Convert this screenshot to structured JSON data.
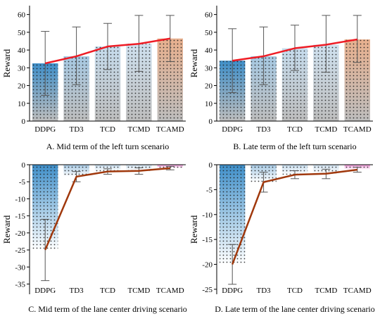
{
  "chart_data": [
    {
      "type": "bar",
      "caption": "A. Mid term of the left turn scenario",
      "categories": [
        "DDPG",
        "TD3",
        "TCD",
        "TCMD",
        "TCAMD"
      ],
      "values": [
        32.5,
        36.5,
        42,
        43.5,
        46.5
      ],
      "error_low": [
        14.5,
        20.5,
        29,
        28,
        33.5
      ],
      "error_high": [
        50.5,
        53,
        55,
        59.5,
        59.5
      ],
      "ylabel": "Reward",
      "ylim": [
        0,
        65
      ],
      "yticks": [
        0,
        10,
        20,
        30,
        40,
        50,
        60
      ],
      "bar_colors": [
        "#3f8fc9",
        "#a7c9e3",
        "#c6dced",
        "#cfe1ef",
        "#e8b08e"
      ],
      "line_color": "#ee1c25",
      "grid": false
    },
    {
      "type": "bar",
      "caption": "B. Late term of the left turn scenario",
      "categories": [
        "DDPG",
        "TD3",
        "TCD",
        "TCMD",
        "TCAMD"
      ],
      "values": [
        34,
        36.5,
        41,
        43,
        46
      ],
      "error_low": [
        16,
        20.5,
        28.5,
        27.5,
        33
      ],
      "error_high": [
        52,
        53,
        54,
        59.5,
        59.5
      ],
      "ylabel": "Reward",
      "ylim": [
        0,
        65
      ],
      "yticks": [
        0,
        10,
        20,
        30,
        40,
        50,
        60
      ],
      "bar_colors": [
        "#3f8fc9",
        "#a7c9e3",
        "#c6dced",
        "#cfe1ef",
        "#e8b08e"
      ],
      "line_color": "#ee1c25",
      "grid": false
    },
    {
      "type": "bar",
      "caption": "C. Mid term of the lane center driving scenario",
      "categories": [
        "DDPG",
        "TD3",
        "TCD",
        "TCMD",
        "TCAMD"
      ],
      "values": [
        -25,
        -3.5,
        -2,
        -1.8,
        -1
      ],
      "error_low": [
        -34,
        -5,
        -2.8,
        -2.8,
        -1.5
      ],
      "error_high": [
        -16,
        -2,
        -1.2,
        -0.9,
        -0.5
      ],
      "ylabel": "Reward",
      "ylim": [
        -38,
        0
      ],
      "yticks": [
        0,
        -5,
        -10,
        -15,
        -20,
        -25,
        -30,
        -35
      ],
      "bar_colors": [
        "#3f8fc9",
        "#a7c9e3",
        "#c6dced",
        "#cfe1ef",
        "#ee94d6"
      ],
      "line_color": "#a0380c",
      "grid": false
    },
    {
      "type": "bar",
      "caption": "D. Late term of the lane center driving scenario",
      "categories": [
        "DDPG",
        "TD3",
        "TCD",
        "TCMD",
        "TCAMD"
      ],
      "values": [
        -20,
        -3.5,
        -2,
        -1.8,
        -1
      ],
      "error_low": [
        -24,
        -5.5,
        -2.8,
        -2.8,
        -1.5
      ],
      "error_high": [
        -16,
        -1.5,
        -1.2,
        -0.9,
        -0.5
      ],
      "ylabel": "Reward",
      "ylim": [
        -26,
        0
      ],
      "yticks": [
        0,
        -5,
        -10,
        -15,
        -20,
        -25
      ],
      "bar_colors": [
        "#3f8fc9",
        "#a7c9e3",
        "#c6dced",
        "#cfe1ef",
        "#ee94d6"
      ],
      "line_color": "#a0380c",
      "grid": false
    }
  ]
}
